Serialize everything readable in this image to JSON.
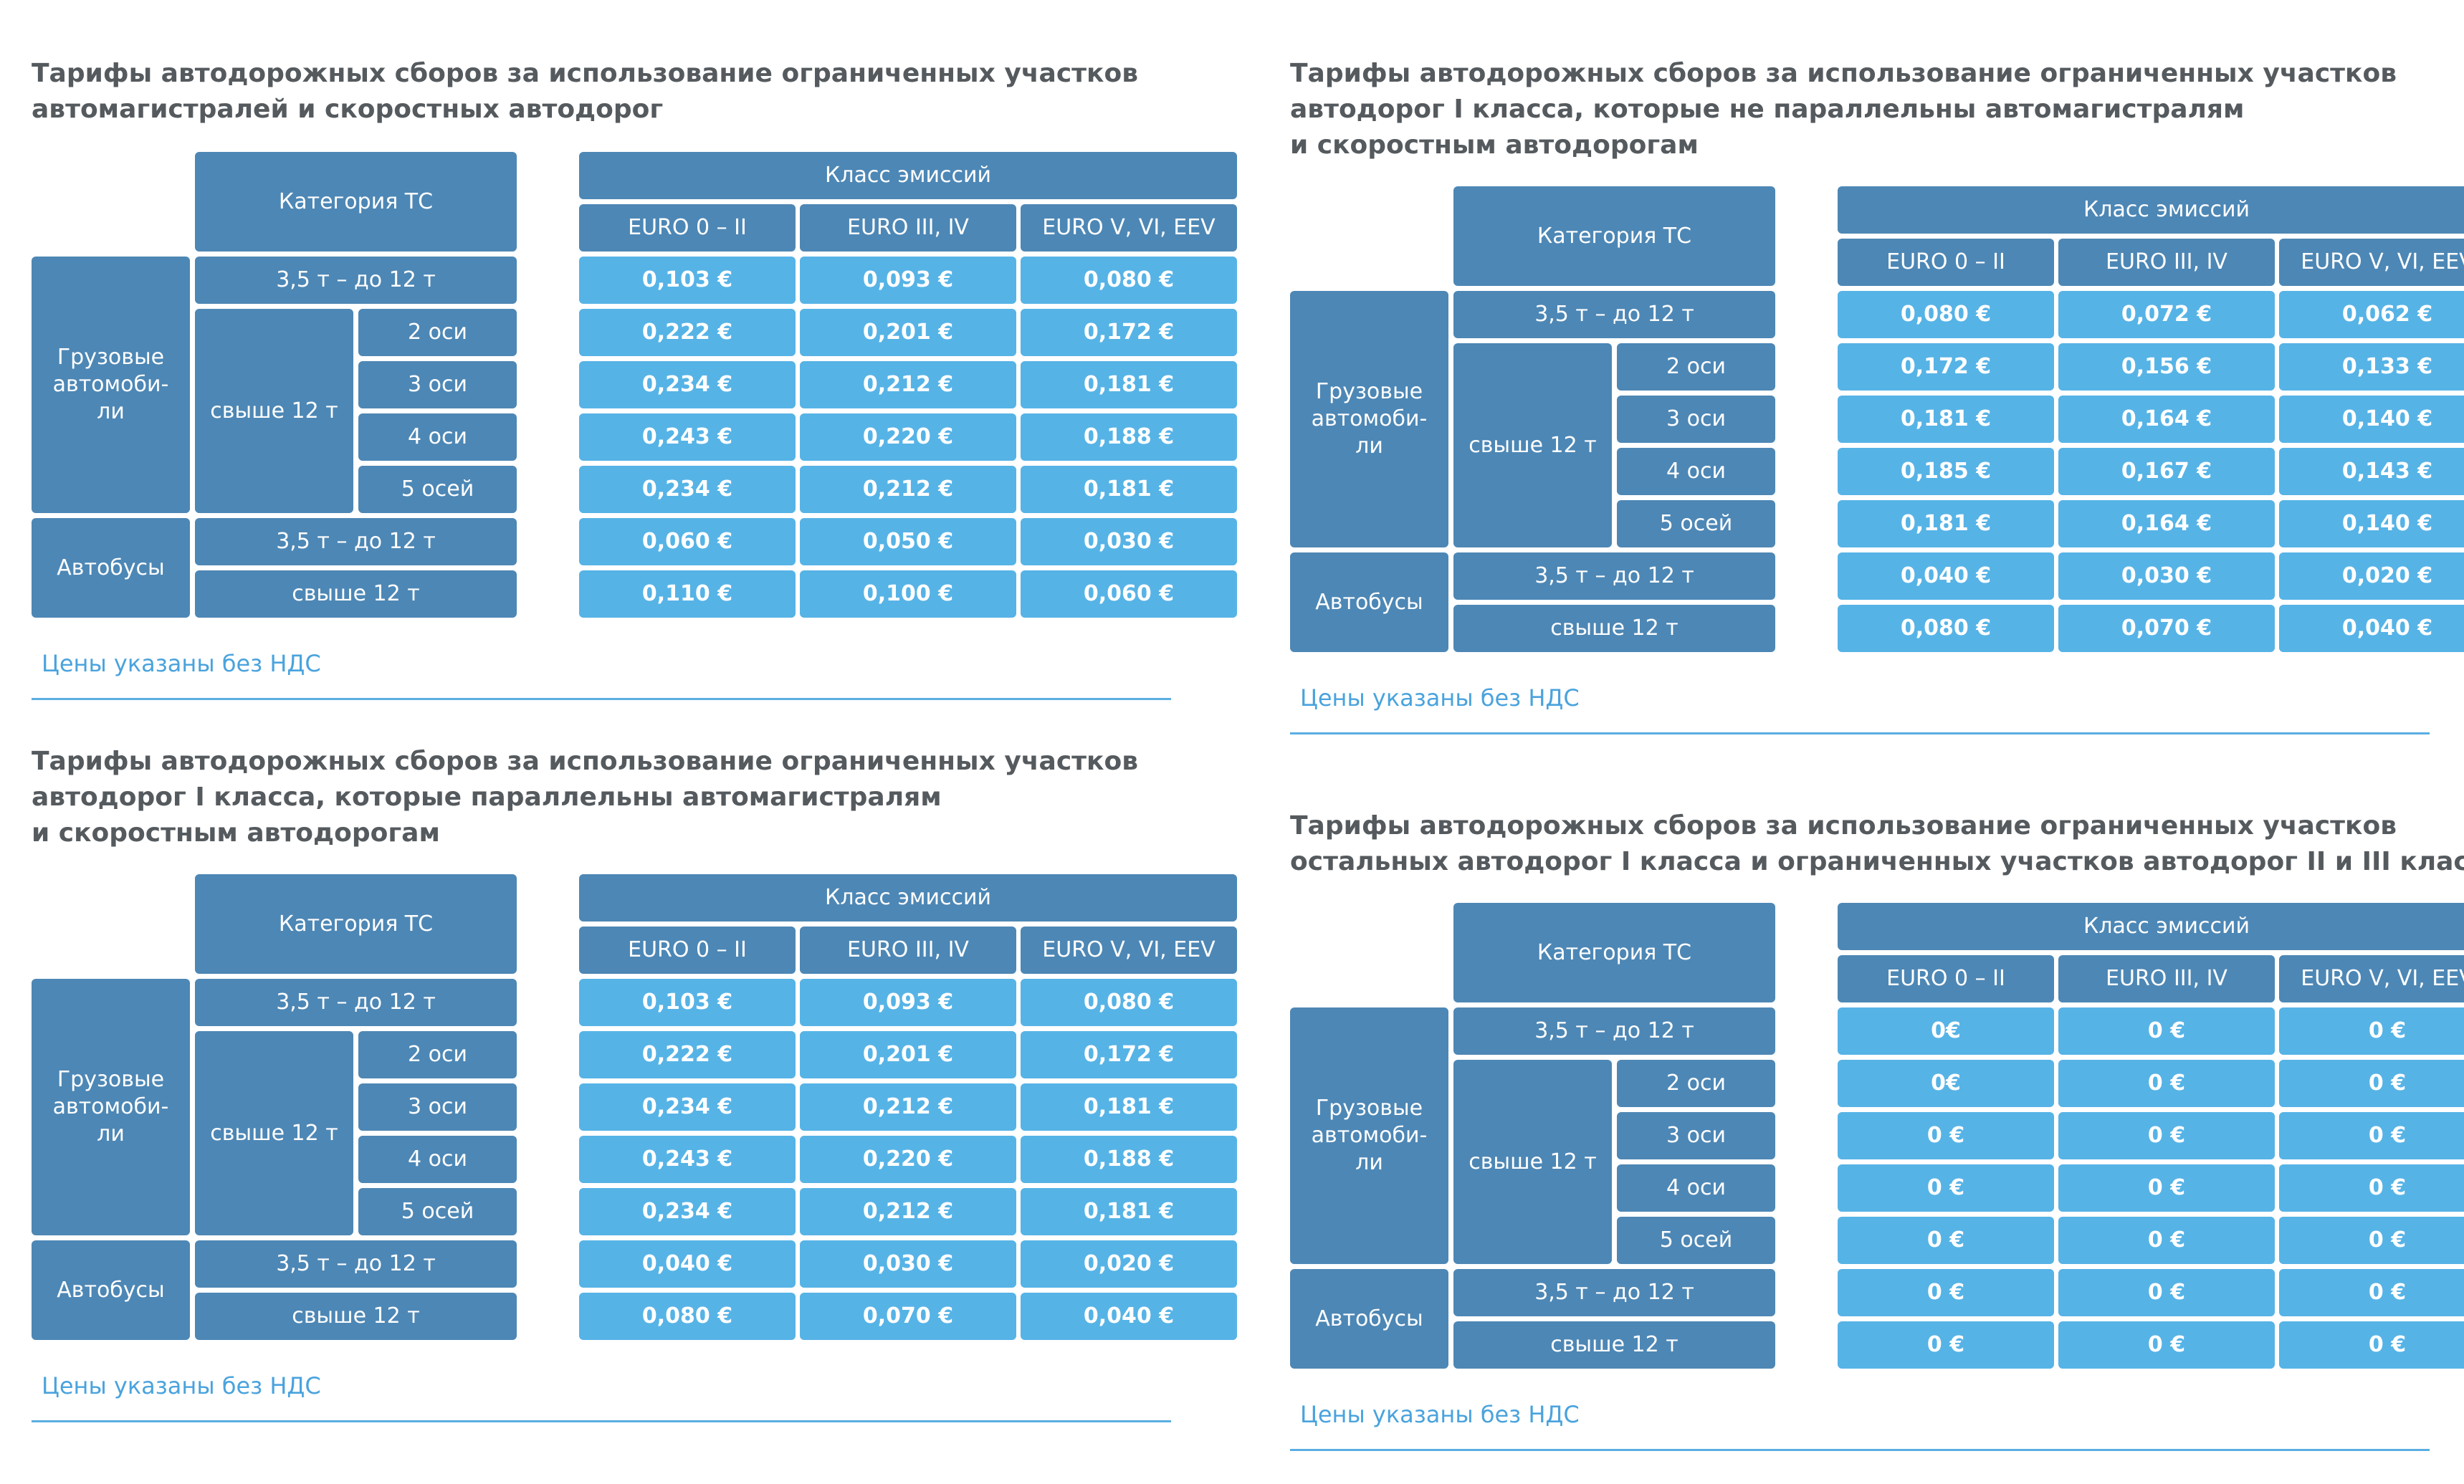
{
  "tables": [
    {
      "title": "Тарифы автодорожных сборов за использование ограниченных участков\nавтомагистралей и скоростных автодорог",
      "header": {
        "category": "Категория ТС",
        "emission_class": "Класс эмиссий",
        "euro": [
          "EURO 0 – II",
          "EURO III, IV",
          "EURO V, VI, EEV"
        ]
      },
      "groups": {
        "trucks": "Грузовые\nавтомоби-\nли",
        "over12": "свыше 12 т",
        "buses": "Автобусы"
      },
      "row_labels": [
        "3,5 т – до 12 т",
        "2 оси",
        "3 оси",
        "4 оси",
        "5 осей",
        "3,5 т – до 12 т",
        "свыше 12 т"
      ],
      "rows": [
        [
          "0,103 €",
          "0,093 €",
          "0,080 €"
        ],
        [
          "0,222 €",
          "0,201 €",
          "0,172 €"
        ],
        [
          "0,234 €",
          "0,212 €",
          "0,181 €"
        ],
        [
          "0,243 €",
          "0,220 €",
          "0,188 €"
        ],
        [
          "0,234 €",
          "0,212 €",
          "0,181 €"
        ],
        [
          "0,060 €",
          "0,050 €",
          "0,030 €"
        ],
        [
          "0,110 €",
          "0,100 €",
          "0,060 €"
        ]
      ],
      "note": "Цены указаны без НДС"
    },
    {
      "title": "Тарифы автодорожных сборов за использование ограниченных участков\nавтодорог I класса, которые не параллельны автомагистралям\nи скоростным автодорогам",
      "header": {
        "category": "Категория ТС",
        "emission_class": "Класс эмиссий",
        "euro": [
          "EURO 0 – II",
          "EURO III, IV",
          "EURO V, VI, EEV"
        ]
      },
      "groups": {
        "trucks": "Грузовые\nавтомоби-\nли",
        "over12": "свыше 12 т",
        "buses": "Автобусы"
      },
      "row_labels": [
        "3,5 т – до 12 т",
        "2 оси",
        "3 оси",
        "4 оси",
        "5 осей",
        "3,5 т – до 12 т",
        "свыше 12 т"
      ],
      "rows": [
        [
          "0,080 €",
          "0,072 €",
          "0,062 €"
        ],
        [
          "0,172 €",
          "0,156 €",
          "0,133 €"
        ],
        [
          "0,181 €",
          "0,164 €",
          "0,140 €"
        ],
        [
          "0,185 €",
          "0,167 €",
          "0,143 €"
        ],
        [
          "0,181 €",
          "0,164 €",
          "0,140 €"
        ],
        [
          "0,040 €",
          "0,030 €",
          "0,020 €"
        ],
        [
          "0,080 €",
          "0,070 €",
          "0,040 €"
        ]
      ],
      "note": "Цены указаны без НДС"
    },
    {
      "title": "Тарифы автодорожных сборов за использование ограниченных участков\nавтодорог I класса, которые параллельны автомагистралям\nи скоростным автодорогам",
      "header": {
        "category": "Категория ТС",
        "emission_class": "Класс эмиссий",
        "euro": [
          "EURO 0 – II",
          "EURO III, IV",
          "EURO V, VI, EEV"
        ]
      },
      "groups": {
        "trucks": "Грузовые\nавтомоби-\nли",
        "over12": "свыше 12 т",
        "buses": "Автобусы"
      },
      "row_labels": [
        "3,5 т – до 12 т",
        "2 оси",
        "3 оси",
        "4 оси",
        "5 осей",
        "3,5 т – до 12 т",
        "свыше 12 т"
      ],
      "rows": [
        [
          "0,103 €",
          "0,093 €",
          "0,080 €"
        ],
        [
          "0,222 €",
          "0,201 €",
          "0,172 €"
        ],
        [
          "0,234 €",
          "0,212 €",
          "0,181 €"
        ],
        [
          "0,243 €",
          "0,220 €",
          "0,188 €"
        ],
        [
          "0,234 €",
          "0,212 €",
          "0,181 €"
        ],
        [
          "0,040 €",
          "0,030 €",
          "0,020 €"
        ],
        [
          "0,080 €",
          "0,070 €",
          "0,040 €"
        ]
      ],
      "note": "Цены указаны без НДС"
    },
    {
      "title": "Тарифы автодорожных сборов за использование ограниченных участков\nостальных автодорог I класса и ограниченных участков автодорог II и III класса",
      "header": {
        "category": "Категория ТС",
        "emission_class": "Класс эмиссий",
        "euro": [
          "EURO 0 – II",
          "EURO III, IV",
          "EURO V, VI, EEV"
        ]
      },
      "groups": {
        "trucks": "Грузовые\nавтомоби-\nли",
        "over12": "свыше 12 т",
        "buses": "Автобусы"
      },
      "row_labels": [
        "3,5 т – до 12 т",
        "2 оси",
        "3 оси",
        "4 оси",
        "5 осей",
        "3,5 т – до 12 т",
        "свыше 12 т"
      ],
      "rows": [
        [
          "0€",
          "0 €",
          "0 €"
        ],
        [
          "0€",
          "0 €",
          "0 €"
        ],
        [
          "0 €",
          "0 €",
          "0 €"
        ],
        [
          "0 €",
          "0 €",
          "0 €"
        ],
        [
          "0 €",
          "0 €",
          "0 €"
        ],
        [
          "0 €",
          "0 €",
          "0 €"
        ],
        [
          "0 €",
          "0 €",
          "0 €"
        ]
      ],
      "note": "Цены указаны без НДС"
    }
  ]
}
